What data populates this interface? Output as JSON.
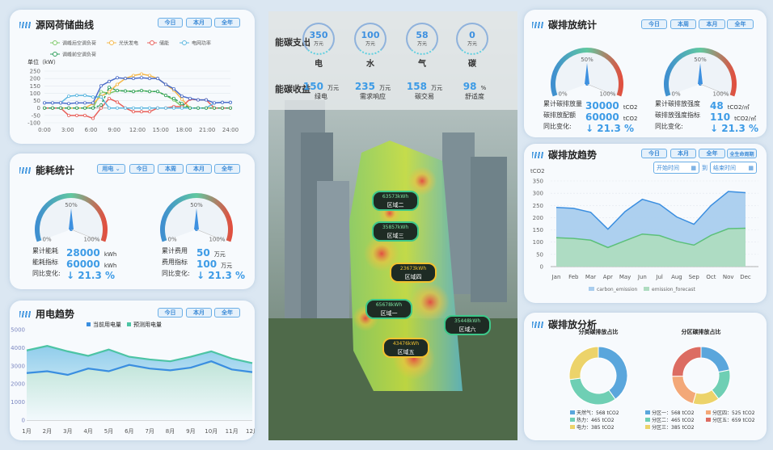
{
  "source_load": {
    "title": "源网荷储曲线",
    "buttons": [
      "今日",
      "本月",
      "全年"
    ],
    "unit_label": "单位（kW）",
    "chart_data": {
      "type": "line",
      "x": [
        0,
        1,
        2,
        3,
        4,
        5,
        6,
        7,
        8,
        9,
        10,
        11,
        12,
        13,
        14,
        15,
        16,
        17,
        18,
        19,
        20,
        21,
        22,
        23
      ],
      "xticks": [
        "0:00",
        "3:00",
        "6:00",
        "9:00",
        "12:00",
        "15:00",
        "18:00",
        "21:00",
        "24:00"
      ],
      "ylim": [
        -100,
        250
      ],
      "yticks": [
        250,
        200,
        150,
        100,
        50,
        0,
        -50,
        -100
      ],
      "grid": true,
      "legend": "top",
      "series": [
        {
          "name": "调峰后空调负荷",
          "color": "#7cc86a",
          "values": [
            0,
            0,
            0,
            0,
            0,
            0,
            0,
            110,
            100,
            118,
            115,
            112,
            118,
            112,
            112,
            85,
            55,
            10,
            0,
            0,
            0,
            0,
            0,
            0
          ]
        },
        {
          "name": "光伏发电",
          "color": "#f5b84a",
          "values": [
            0,
            0,
            0,
            0,
            0,
            0,
            30,
            80,
            110,
            160,
            200,
            220,
            230,
            220,
            200,
            160,
            120,
            60,
            0,
            0,
            0,
            0,
            0,
            0
          ]
        },
        {
          "name": "储能",
          "color": "#e8605a",
          "values": [
            0,
            0,
            0,
            -50,
            -50,
            -50,
            -70,
            0,
            65,
            40,
            0,
            -25,
            -25,
            -25,
            0,
            0,
            10,
            10,
            60,
            55,
            55,
            0,
            0,
            0
          ]
        },
        {
          "name": "电网功率",
          "color": "#5cb7e0",
          "values": [
            35,
            35,
            35,
            80,
            85,
            85,
            75,
            75,
            0,
            0,
            0,
            0,
            0,
            0,
            0,
            0,
            0,
            0,
            0,
            0,
            0,
            35,
            38,
            38
          ]
        },
        {
          "name": "调峰前空调负荷",
          "color": "#2e9e5e",
          "dashed": true,
          "values": [
            0,
            0,
            0,
            0,
            0,
            0,
            0,
            20,
            140,
            118,
            115,
            112,
            118,
            112,
            112,
            85,
            65,
            30,
            0,
            0,
            0,
            0,
            0,
            0
          ]
        },
        {
          "color": "#4a6cc8",
          "values": [
            35,
            35,
            35,
            30,
            35,
            35,
            35,
            150,
            180,
            205,
            200,
            200,
            205,
            200,
            200,
            160,
            130,
            80,
            65,
            55,
            55,
            35,
            38,
            38
          ]
        }
      ]
    }
  },
  "energy": {
    "title": "能耗统计",
    "select": "用电",
    "buttons": [
      "今日",
      "本周",
      "本月",
      "全年"
    ],
    "gauges": [
      {
        "value_percent": 50,
        "ticks": [
          "0%",
          "50%",
          "100%"
        ],
        "rows": [
          {
            "label": "累计能耗",
            "value": "28000",
            "unit": "kWh"
          },
          {
            "label": "能耗指标",
            "value": "60000",
            "unit": "kWh"
          },
          {
            "label": "同比变化:",
            "value": "↓ 21.3 %",
            "unit": ""
          }
        ]
      },
      {
        "value_percent": 50,
        "ticks": [
          "0%",
          "50%",
          "100%"
        ],
        "rows": [
          {
            "label": "累计费用",
            "value": "50",
            "unit": "万元"
          },
          {
            "label": "费用指标",
            "value": "100",
            "unit": "万元"
          },
          {
            "label": "同比变化:",
            "value": "↓ 21.3 %",
            "unit": ""
          }
        ]
      }
    ]
  },
  "power_trend": {
    "title": "用电趋势",
    "buttons": [
      "今日",
      "本月",
      "全年"
    ],
    "chart_data": {
      "type": "area",
      "categories": [
        "1月",
        "2月",
        "3月",
        "4月",
        "5月",
        "6月",
        "7月",
        "8月",
        "9月",
        "10月",
        "11月",
        "12月"
      ],
      "ylim": [
        0,
        5000
      ],
      "yticks": [
        5000,
        4000,
        3000,
        2000,
        1000,
        0
      ],
      "legend": "top",
      "series": [
        {
          "name": "当前用电量",
          "color": "#3a8ee0",
          "values": [
            2600,
            2700,
            2500,
            2850,
            2700,
            3050,
            2850,
            2750,
            2900,
            3250,
            2800,
            2650
          ]
        },
        {
          "name": "预测用电量",
          "color": "#4cc4a4",
          "values": [
            3850,
            4100,
            3800,
            3550,
            3900,
            3500,
            3350,
            3250,
            3500,
            3800,
            3400,
            3150
          ]
        }
      ]
    }
  },
  "center": {
    "expense_label": "能碳支出",
    "income_label": "能碳收益",
    "expense": [
      {
        "value": "350",
        "unit": "万元",
        "label": "电"
      },
      {
        "value": "100",
        "unit": "万元",
        "label": "水"
      },
      {
        "value": "58",
        "unit": "万元",
        "label": "气"
      },
      {
        "value": "0",
        "unit": "万元",
        "label": "碳"
      }
    ],
    "income": [
      {
        "value": "150",
        "unit": "万元",
        "label": "绿电"
      },
      {
        "value": "235",
        "unit": "万元",
        "label": "需求响应"
      },
      {
        "value": "158",
        "unit": "万元",
        "label": "碳交易"
      },
      {
        "value": "98",
        "unit": "%",
        "label": "舒适度"
      }
    ],
    "zones": [
      {
        "value": "63573kWh",
        "name": "区域二"
      },
      {
        "value": "35857kWh",
        "name": "区域三"
      },
      {
        "value": "23673kWh",
        "name": "区域四"
      },
      {
        "value": "65678kWh",
        "name": "区域一"
      },
      {
        "value": "35448kWh",
        "name": "区域六"
      },
      {
        "value": "43476kWh",
        "name": "区域五"
      }
    ]
  },
  "carbon_stats": {
    "title": "碳排放统计",
    "buttons": [
      "今日",
      "本周",
      "本月",
      "全年"
    ],
    "gauges": [
      {
        "value_percent": 50,
        "ticks": [
          "0%",
          "50%",
          "100%"
        ],
        "rows": [
          {
            "label": "累计碳排放量",
            "value": "30000",
            "unit": "tCO2"
          },
          {
            "label": "碳排放配额",
            "value": "60000",
            "unit": "tCO2"
          },
          {
            "label": "同比变化:",
            "value": "↓ 21.3 %",
            "unit": ""
          }
        ]
      },
      {
        "value_percent": 50,
        "ticks": [
          "0%",
          "50%",
          "100%"
        ],
        "rows": [
          {
            "label": "累计碳排放强度",
            "value": "48",
            "unit": "tCO2/㎡"
          },
          {
            "label": "碳排放强度指标",
            "value": "110",
            "unit": "tCO2/㎡"
          },
          {
            "label": "同比变化:",
            "value": "↓ 21.3 %",
            "unit": ""
          }
        ]
      }
    ]
  },
  "carbon_trend": {
    "title": "碳排放趋势",
    "buttons": [
      "今日",
      "本月",
      "全年",
      "全生命周期"
    ],
    "start_placeholder": "开始时间",
    "to": "到",
    "end_placeholder": "结束时间",
    "chart_data": {
      "type": "area",
      "categories": [
        "Jan",
        "Feb",
        "Mar",
        "Apr",
        "May",
        "Jun",
        "Jul",
        "Aug",
        "Sep",
        "Oct",
        "Nov",
        "Dec"
      ],
      "ylabel": "tCO2",
      "ylim": [
        0,
        350
      ],
      "yticks": [
        350,
        300,
        250,
        200,
        150,
        100,
        50,
        0
      ],
      "grid": true,
      "legend": "bottom",
      "series": [
        {
          "name": "carbon_emission",
          "color": "#3a8ee0",
          "fill": "#a9cdee",
          "values": [
            242,
            238,
            222,
            153,
            225,
            275,
            255,
            203,
            173,
            250,
            307,
            302
          ]
        },
        {
          "name": "emission_forecast",
          "color": "#5cc07a",
          "fill": "#aedcc0",
          "values": [
            118,
            115,
            108,
            78,
            106,
            133,
            127,
            103,
            88,
            128,
            155,
            157
          ]
        }
      ]
    }
  },
  "carbon_analysis": {
    "title": "碳排放分析",
    "chart_data": [
      {
        "type": "pie",
        "title": "分类碳排放占比",
        "slices": [
          {
            "name": "天然气",
            "value": 568,
            "unit": "tCO2",
            "color": "#5aa6dc"
          },
          {
            "name": "热力",
            "value": 465,
            "unit": "tCO2",
            "color": "#6fcfb4"
          },
          {
            "name": "电力",
            "value": 385,
            "unit": "tCO2",
            "color": "#ecd36a"
          }
        ]
      },
      {
        "type": "pie",
        "title": "分区碳排放占比",
        "slices": [
          {
            "name": "分区一",
            "value": 568,
            "unit": "tCO2",
            "color": "#5aa6dc"
          },
          {
            "name": "分区二",
            "value": 465,
            "unit": "tCO2",
            "color": "#6fcfb4"
          },
          {
            "name": "分区三",
            "value": 385,
            "unit": "tCO2",
            "color": "#ecd36a"
          },
          {
            "name": "分区四",
            "value": 525,
            "unit": "tCO2",
            "color": "#f3a878"
          },
          {
            "name": "分区五",
            "value": 659,
            "unit": "tCO2",
            "color": "#dc6c62"
          }
        ]
      }
    ]
  }
}
